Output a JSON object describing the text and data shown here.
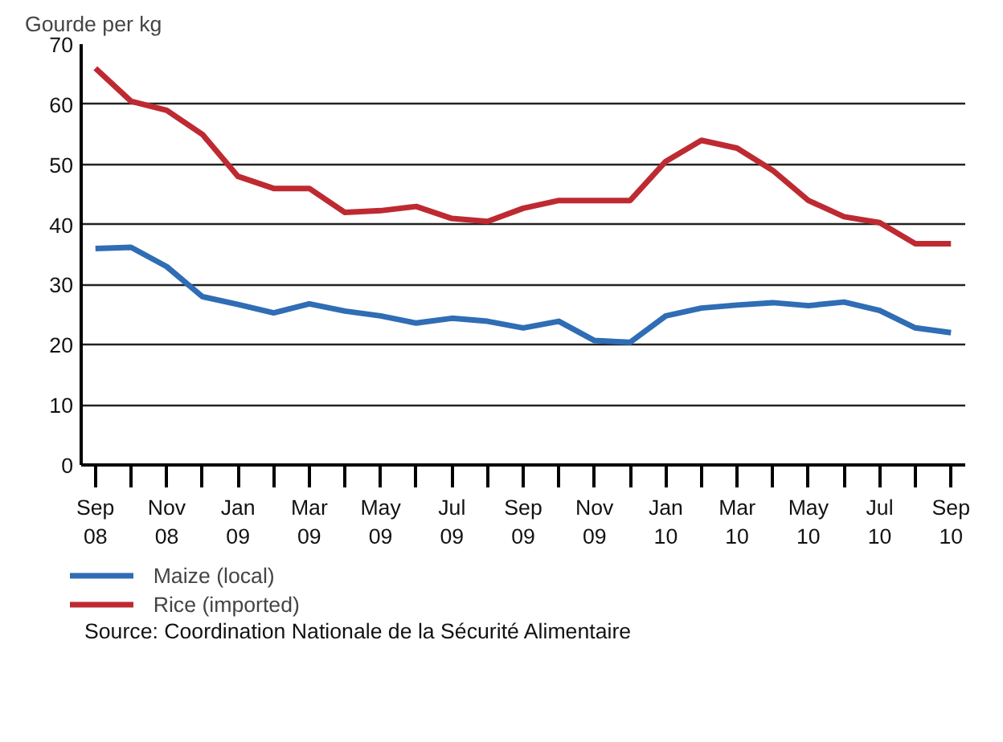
{
  "chart_data": {
    "type": "line",
    "ylabel": "Gourde per kg",
    "categories": [
      "Sep 08",
      null,
      "Nov 08",
      null,
      "Jan 09",
      null,
      "Mar 09",
      null,
      "May 09",
      null,
      "Jul 09",
      null,
      "Sep 09",
      null,
      "Nov 09",
      null,
      "Jan 10",
      null,
      "Mar 10",
      null,
      "May 10",
      null,
      "Jul 10",
      null,
      "Sep 10"
    ],
    "series": [
      {
        "name": "Maize (local)",
        "color": "#2f6db5",
        "values": [
          36,
          36.2,
          33,
          28,
          26.7,
          25.3,
          26.8,
          25.6,
          24.8,
          23.6,
          24.4,
          23.9,
          22.8,
          23.9,
          20.7,
          20.4,
          24.8,
          26.1,
          26.6,
          27,
          26.5,
          27.1,
          25.7,
          22.8,
          22
        ]
      },
      {
        "name": "Rice (imported)",
        "color": "#be2a32",
        "values": [
          66,
          60.5,
          59,
          55,
          48,
          46,
          46,
          42,
          42.3,
          43,
          41,
          40.5,
          42.7,
          44,
          44,
          44,
          50.5,
          54,
          52.7,
          49,
          44,
          41.3,
          40.3,
          36.8,
          36.8
        ]
      }
    ],
    "ylim": [
      0,
      70
    ],
    "yticks": [
      0,
      10,
      20,
      30,
      40,
      50,
      60,
      70
    ],
    "grid": "y",
    "legend": "bottom left",
    "annotations": [
      "Source: Coordination Nationale de la Sécurité Alimentaire"
    ]
  }
}
